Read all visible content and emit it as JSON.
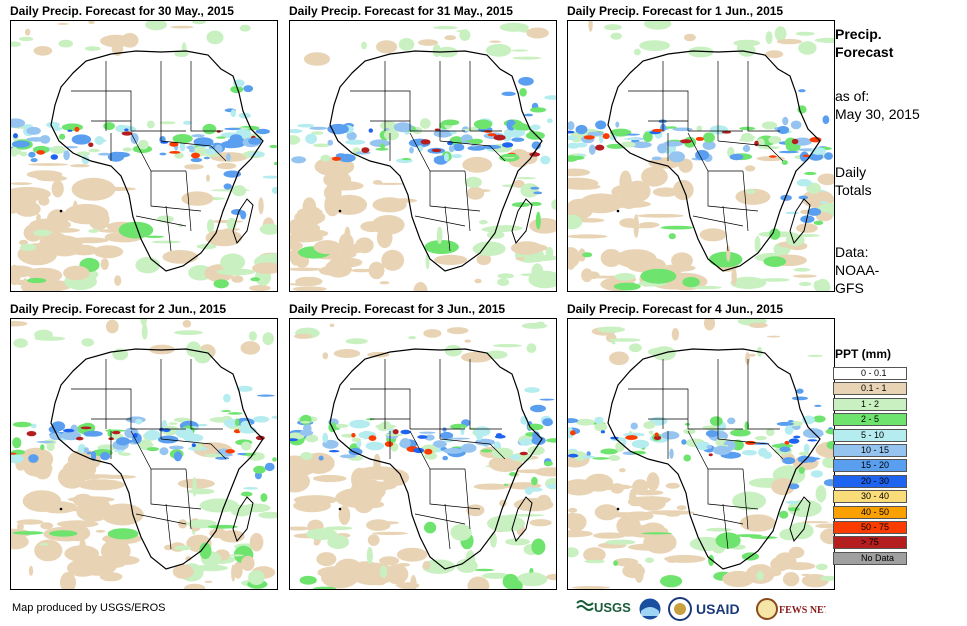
{
  "panels": [
    {
      "title": "Daily Precip. Forecast for 30 May., 2015"
    },
    {
      "title": "Daily Precip. Forecast for 31 May., 2015"
    },
    {
      "title": "Daily Precip. Forecast for 1 Jun., 2015"
    },
    {
      "title": "Daily Precip. Forecast for 2 Jun., 2015"
    },
    {
      "title": "Daily Precip. Forecast for 3 Jun., 2015"
    },
    {
      "title": "Daily Precip. Forecast for 4 Jun., 2015"
    }
  ],
  "side": {
    "title_line1": "Precip.",
    "title_line2": "Forecast",
    "asof_label": "as of:",
    "asof_date": "May 30, 2015",
    "totals_line1": "Daily",
    "totals_line2": "Totals",
    "data_line1": "Data:",
    "data_line2": "NOAA-",
    "data_line3": "GFS"
  },
  "legend": {
    "title": "PPT (mm)",
    "items": [
      {
        "label": "0 - 0.1",
        "color": "#ffffff"
      },
      {
        "label": "0.1 - 1",
        "color": "#e8d4b4"
      },
      {
        "label": "1 - 2",
        "color": "#c8f0c0"
      },
      {
        "label": "2 - 5",
        "color": "#6ee46e"
      },
      {
        "label": "5 - 10",
        "color": "#b4ecf0"
      },
      {
        "label": "10 - 15",
        "color": "#96c4f0"
      },
      {
        "label": "15 - 20",
        "color": "#5a9ef0"
      },
      {
        "label": "20 - 30",
        "color": "#1e64f0"
      },
      {
        "label": "30 - 40",
        "color": "#fadc78"
      },
      {
        "label": "40 - 50",
        "color": "#faa000"
      },
      {
        "label": "50 - 75",
        "color": "#fa3c00"
      },
      {
        "label": "> 75",
        "color": "#b41e1e"
      },
      {
        "label": "No Data",
        "color": "#a0a0a0"
      }
    ]
  },
  "credit": "Map produced by USGS/EROS",
  "logos": {
    "usgs": "USGS",
    "usaid": "USAID",
    "fewsnet": "FEWS NET"
  }
}
